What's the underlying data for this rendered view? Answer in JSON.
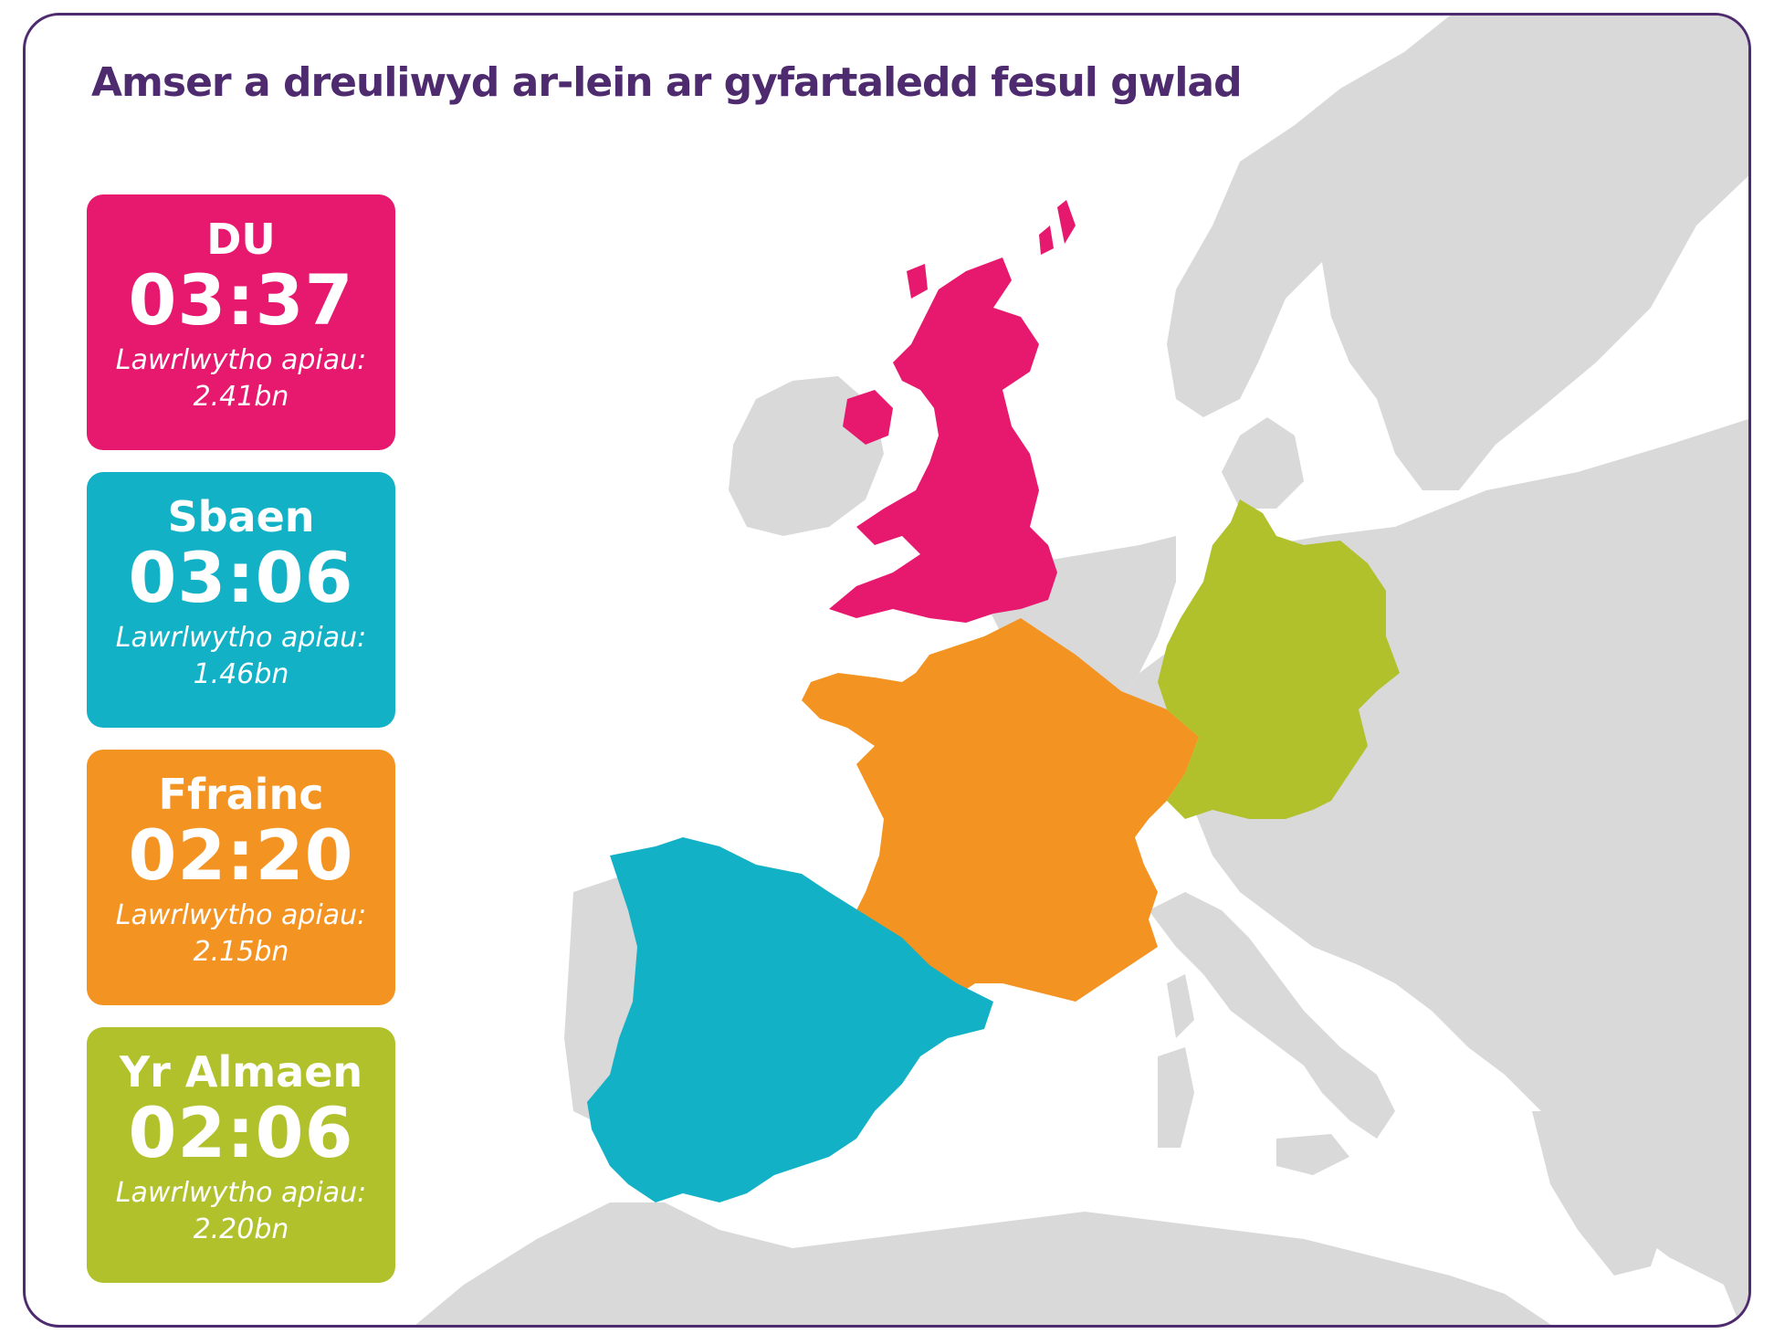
{
  "title": "Amser a dreuliwyd ar-lein ar gyfartaledd fesul gwlad",
  "colors": {
    "border": "#4e2a6e",
    "title": "#4e2a6e",
    "land": "#d9d9d9",
    "uk": "#e6196f",
    "spain": "#13b1c6",
    "france": "#f39322",
    "germany": "#b1c12b"
  },
  "countries": [
    {
      "id": "uk",
      "name": "DU",
      "time": "03:37",
      "caption": "Lawrlwytho apiau:",
      "downloads": "2.41bn",
      "color": "#e6196f"
    },
    {
      "id": "spain",
      "name": "Sbaen",
      "time": "03:06",
      "caption": "Lawrlwytho apiau:",
      "downloads": "1.46bn",
      "color": "#13b1c6"
    },
    {
      "id": "france",
      "name": "Ffrainc",
      "time": "02:20",
      "caption": "Lawrlwytho apiau:",
      "downloads": "2.15bn",
      "color": "#f39322"
    },
    {
      "id": "germany",
      "name": "Yr Almaen",
      "time": "02:06",
      "caption": "Lawrlwytho apiau:",
      "downloads": "2.20bn",
      "color": "#b1c12b"
    }
  ]
}
